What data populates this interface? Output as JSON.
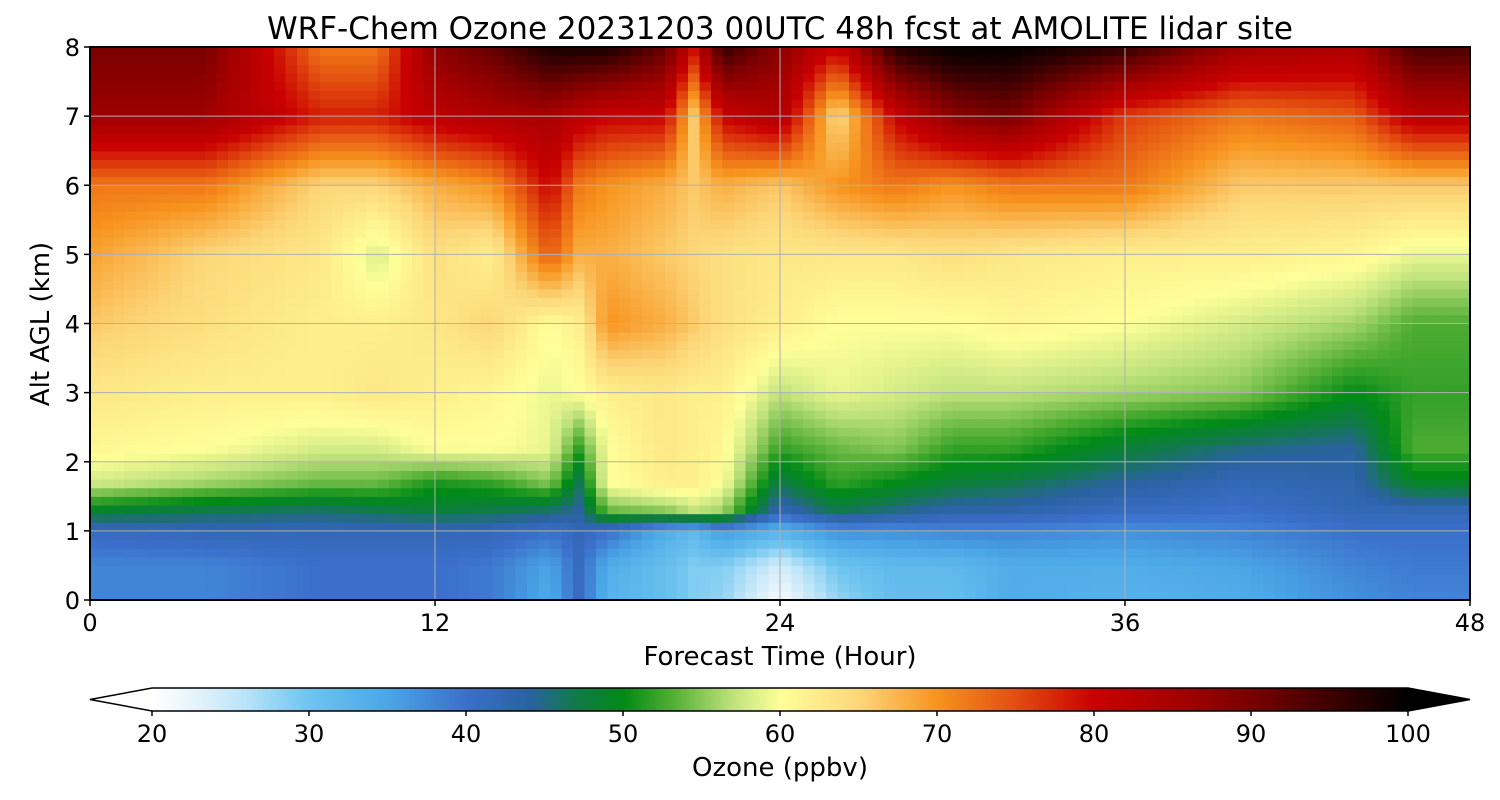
{
  "chart_data": {
    "type": "heatmap",
    "title": "WRF-Chem Ozone  20231203 00UTC 48h fcst at AMOLITE lidar site",
    "xlabel": "Forecast Time (Hour)",
    "ylabel": "Alt AGL (km)",
    "xlim": [
      0,
      48
    ],
    "ylim": [
      0,
      8
    ],
    "x_ticks": [
      0,
      12,
      24,
      36,
      48
    ],
    "y_ticks": [
      0,
      1,
      2,
      3,
      4,
      5,
      6,
      7,
      8
    ],
    "grid": true,
    "colorbar": {
      "label": "Ozone  (ppbv)",
      "min": 20,
      "max": 100,
      "ticks": [
        20,
        30,
        40,
        50,
        60,
        70,
        80,
        90,
        100
      ],
      "extend": "both",
      "orientation": "horizontal",
      "placement": "bottom",
      "color_stops": [
        {
          "value": 20,
          "color": "#ffffff"
        },
        {
          "value": 23,
          "color": "#e2f2fb"
        },
        {
          "value": 26,
          "color": "#b8e3f8"
        },
        {
          "value": 30,
          "color": "#6ec4ef"
        },
        {
          "value": 35,
          "color": "#4aa6e6"
        },
        {
          "value": 40,
          "color": "#3b6fcb"
        },
        {
          "value": 44,
          "color": "#2a62a0"
        },
        {
          "value": 47,
          "color": "#117a4a"
        },
        {
          "value": 50,
          "color": "#008a16"
        },
        {
          "value": 53,
          "color": "#4eac32"
        },
        {
          "value": 57,
          "color": "#bfe27c"
        },
        {
          "value": 60,
          "color": "#ffff99"
        },
        {
          "value": 65,
          "color": "#fcd77a"
        },
        {
          "value": 70,
          "color": "#f7931e"
        },
        {
          "value": 75,
          "color": "#e34e10"
        },
        {
          "value": 80,
          "color": "#c90000"
        },
        {
          "value": 85,
          "color": "#a80000"
        },
        {
          "value": 90,
          "color": "#7a0000"
        },
        {
          "value": 95,
          "color": "#3d0000"
        },
        {
          "value": 100,
          "color": "#000000"
        }
      ]
    },
    "x_hours": [
      0,
      4,
      8,
      10,
      12,
      14,
      16,
      17,
      18,
      20,
      21,
      22,
      24,
      26,
      28,
      30,
      32,
      36,
      40,
      44,
      46,
      48
    ],
    "y_km": [
      0,
      0.5,
      1.0,
      1.3,
      1.7,
      2.2,
      3.0,
      4.0,
      5.0,
      6.0,
      7.0,
      8.0
    ],
    "z_ppbv": [
      [
        38,
        38,
        40,
        40,
        40,
        39,
        34,
        41,
        33,
        31,
        29,
        28,
        21,
        28,
        31,
        31,
        34,
        33,
        34,
        37,
        38,
        38
      ],
      [
        38,
        38,
        40,
        40,
        40,
        39,
        35,
        41,
        34,
        31,
        29,
        29,
        24,
        30,
        32,
        32,
        34,
        34,
        35,
        38,
        39,
        39
      ],
      [
        41,
        42,
        42,
        42,
        42,
        42,
        40,
        42,
        40,
        34,
        32,
        36,
        33,
        37,
        37,
        38,
        38,
        37,
        38,
        40,
        40,
        40
      ],
      [
        49,
        47,
        46,
        47,
        48,
        47,
        46,
        44,
        54,
        55,
        57,
        56,
        42,
        47,
        45,
        43,
        43,
        41,
        40,
        42,
        42,
        42
      ],
      [
        58,
        56,
        54,
        54,
        51,
        52,
        55,
        47,
        60,
        62,
        62,
        60,
        47,
        52,
        50,
        48,
        47,
        44,
        42,
        43,
        49,
        49
      ],
      [
        61,
        60,
        58,
        58,
        60,
        60,
        59,
        52,
        60,
        63,
        62,
        61,
        52,
        54,
        55,
        52,
        52,
        48,
        45,
        44,
        53,
        53
      ],
      [
        63,
        62,
        62,
        63,
        62,
        61,
        59,
        60,
        62,
        63,
        62,
        62,
        57,
        59,
        58,
        57,
        57,
        56,
        55,
        50,
        52,
        52
      ],
      [
        66,
        64,
        62,
        62,
        63,
        65,
        60,
        62,
        70,
        68,
        66,
        64,
        62,
        60,
        60,
        60,
        61,
        60,
        58,
        56,
        53,
        53
      ],
      [
        69,
        65,
        63,
        58,
        64,
        62,
        74,
        68,
        68,
        66,
        65,
        64,
        63,
        63,
        63,
        64,
        63,
        62,
        62,
        61,
        59,
        59
      ],
      [
        72,
        72,
        65,
        65,
        68,
        70,
        80,
        72,
        70,
        68,
        66,
        68,
        66,
        70,
        72,
        70,
        72,
        72,
        66,
        66,
        66,
        66
      ],
      [
        86,
        86,
        78,
        78,
        82,
        84,
        85,
        82,
        80,
        80,
        66,
        80,
        84,
        64,
        80,
        88,
        90,
        76,
        72,
        74,
        82,
        82
      ],
      [
        90,
        90,
        72,
        72,
        88,
        92,
        98,
        98,
        98,
        92,
        80,
        96,
        88,
        80,
        97,
        100,
        100,
        96,
        86,
        84,
        94,
        94
      ]
    ]
  }
}
